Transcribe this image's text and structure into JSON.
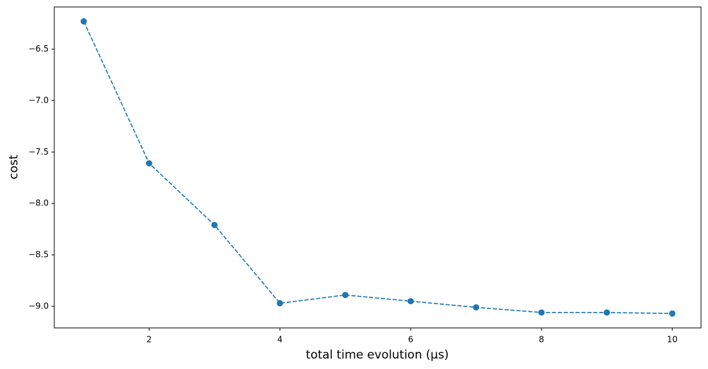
{
  "chart_data": {
    "type": "line",
    "x": [
      1,
      2,
      3,
      4,
      5,
      6,
      7,
      8,
      9,
      10
    ],
    "series": [
      {
        "color": "#1f77b4",
        "values": [
          -6.23,
          -7.61,
          -8.21,
          -8.97,
          -8.89,
          -8.95,
          -9.01,
          -9.06,
          -9.06,
          -9.07
        ]
      }
    ],
    "x_label": "total time evolution (µs)",
    "y_label": "cost",
    "xlim": [
      0.55,
      10.44
    ],
    "ylim": [
      -9.21,
      -6.09
    ],
    "xticks": [
      2,
      4,
      6,
      8,
      10
    ],
    "yticks": [
      {
        "value": -9.0,
        "label": "−9.0"
      },
      {
        "value": -8.5,
        "label": "−8.5"
      },
      {
        "value": -8.0,
        "label": "−8.0"
      },
      {
        "value": -7.5,
        "label": "−7.5"
      },
      {
        "value": -7.0,
        "label": "−7.0"
      },
      {
        "value": -6.5,
        "label": "−6.5"
      }
    ],
    "line_style": "dashed",
    "markers": true,
    "grid": false
  }
}
